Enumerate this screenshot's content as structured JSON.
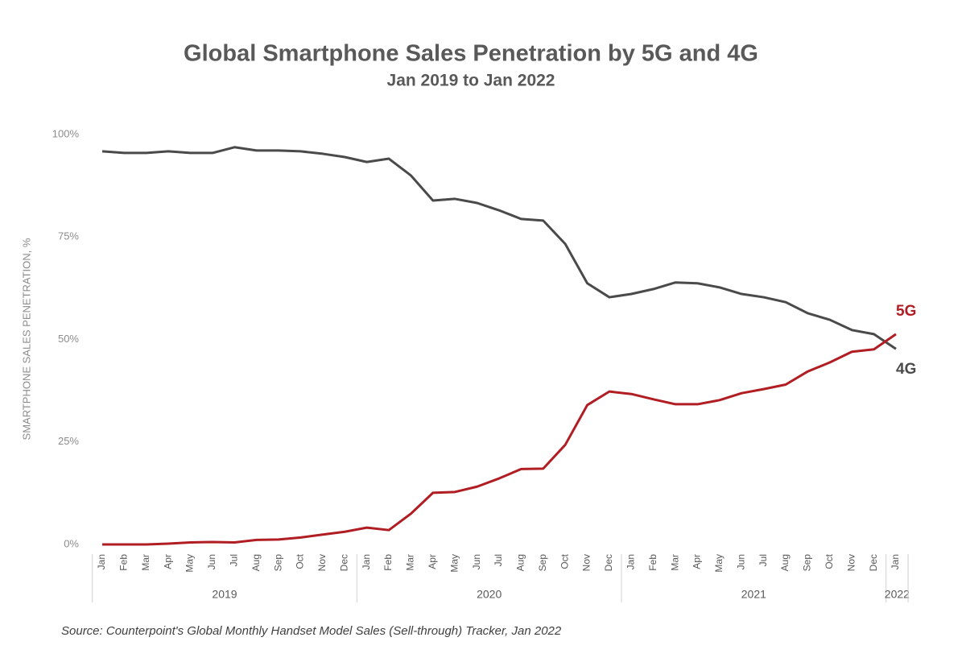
{
  "chart_data": {
    "type": "line",
    "title": "Global Smartphone Sales Penetration by 5G and 4G",
    "subtitle": "Jan 2019 to Jan 2022",
    "y_label": "SMARTPHONE SALES PENETRATION, %",
    "source": "Source: Counterpoint's Global Monthly Handset Model Sales (Sell-through) Tracker, Jan 2022",
    "categories": [
      "Jan",
      "Feb",
      "Mar",
      "Apr",
      "May",
      "Jun",
      "Jul",
      "Aug",
      "Sep",
      "Oct",
      "Nov",
      "Dec",
      "Jan",
      "Feb",
      "Mar",
      "Apr",
      "May",
      "Jun",
      "Jul",
      "Aug",
      "Sep",
      "Oct",
      "Nov",
      "Dec",
      "Jan",
      "Feb",
      "Mar",
      "Apr",
      "May",
      "Jun",
      "Jul",
      "Aug",
      "Sep",
      "Oct",
      "Nov",
      "Dec",
      "Jan"
    ],
    "groups": [
      {
        "label": "2019",
        "count": 12
      },
      {
        "label": "2020",
        "count": 12
      },
      {
        "label": "2021",
        "count": 12
      },
      {
        "label": "2022",
        "count": 1
      }
    ],
    "series": [
      {
        "name": "4G",
        "color": "#4a4a4a",
        "values": [
          95.9,
          95.5,
          95.5,
          95.9,
          95.5,
          95.5,
          96.9,
          96.1,
          96.1,
          95.9,
          95.3,
          94.5,
          93.3,
          94.1,
          90.0,
          83.9,
          84.3,
          83.3,
          81.5,
          79.4,
          79.0,
          73.3,
          63.7,
          60.3,
          61.1,
          62.3,
          63.9,
          63.7,
          62.7,
          61.1,
          60.3,
          59.1,
          56.4,
          54.8,
          52.3,
          51.3,
          47.7
        ]
      },
      {
        "name": "5G",
        "color": "#b01e23",
        "values": [
          0,
          0,
          0,
          0.2,
          0.5,
          0.6,
          0.5,
          1.1,
          1.2,
          1.7,
          2.4,
          3.1,
          4.1,
          3.5,
          7.5,
          12.6,
          12.8,
          14.1,
          16.1,
          18.4,
          18.5,
          24.3,
          34.0,
          37.3,
          36.7,
          35.4,
          34.2,
          34.2,
          35.2,
          36.9,
          37.9,
          39.0,
          42.2,
          44.4,
          47.0,
          47.6,
          51.3
        ]
      }
    ],
    "ylim": [
      0,
      100
    ],
    "yticks": [
      {
        "value": 0,
        "label": "0%"
      },
      {
        "value": 25,
        "label": "25%"
      },
      {
        "value": 50,
        "label": "50%"
      },
      {
        "value": 75,
        "label": "75%"
      },
      {
        "value": 100,
        "label": "100%"
      }
    ],
    "grid": false
  }
}
